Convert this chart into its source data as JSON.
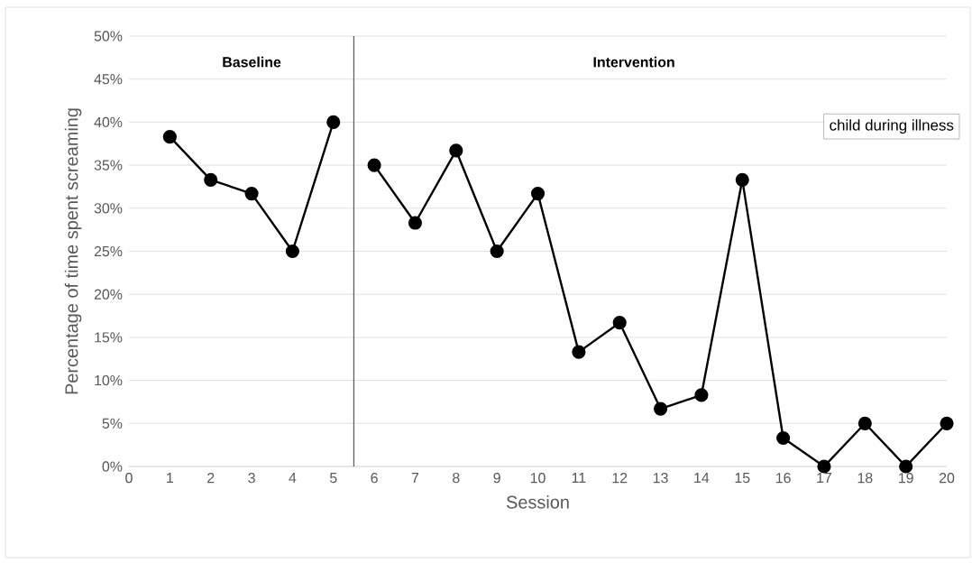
{
  "chart_data": {
    "type": "line",
    "xlabel": "Session",
    "ylabel": "Percentage of time spent screaming",
    "series": [
      {
        "color": "#000000",
        "x": [
          1,
          2,
          3,
          4,
          5
        ],
        "values": [
          38.3,
          33.3,
          31.7,
          25,
          40
        ]
      },
      {
        "color": "#000000",
        "x": [
          6,
          7,
          8,
          9,
          10,
          11,
          12,
          13,
          14,
          15,
          16,
          17,
          18,
          19,
          20
        ],
        "values": [
          35,
          28.3,
          36.7,
          25,
          31.7,
          13.3,
          16.7,
          6.7,
          8.3,
          33.3,
          3.3,
          0,
          5,
          0,
          5
        ]
      }
    ],
    "xlim": [
      0,
      20
    ],
    "xticks": [
      0,
      1,
      2,
      3,
      4,
      5,
      6,
      7,
      8,
      9,
      10,
      11,
      12,
      13,
      14,
      15,
      16,
      17,
      18,
      19,
      20
    ],
    "ylim": [
      0,
      50
    ],
    "yticks": [
      {
        "value": 0,
        "label": "0%"
      },
      {
        "value": 5,
        "label": "5%"
      },
      {
        "value": 10,
        "label": "10%"
      },
      {
        "value": 15,
        "label": "15%"
      },
      {
        "value": 20,
        "label": "20%"
      },
      {
        "value": 25,
        "label": "25%"
      },
      {
        "value": 30,
        "label": "30%"
      },
      {
        "value": 35,
        "label": "35%"
      },
      {
        "value": 40,
        "label": "40%"
      },
      {
        "value": 45,
        "label": "45%"
      },
      {
        "value": 50,
        "label": "50%"
      }
    ],
    "ref_lines": [
      {
        "axis": "x",
        "value": 5.5,
        "color": "#595959"
      }
    ],
    "annotations": [
      "Baseline",
      "Intervention",
      "child during illness"
    ],
    "grid": "y",
    "marker": "circle",
    "line_style": "solid"
  }
}
